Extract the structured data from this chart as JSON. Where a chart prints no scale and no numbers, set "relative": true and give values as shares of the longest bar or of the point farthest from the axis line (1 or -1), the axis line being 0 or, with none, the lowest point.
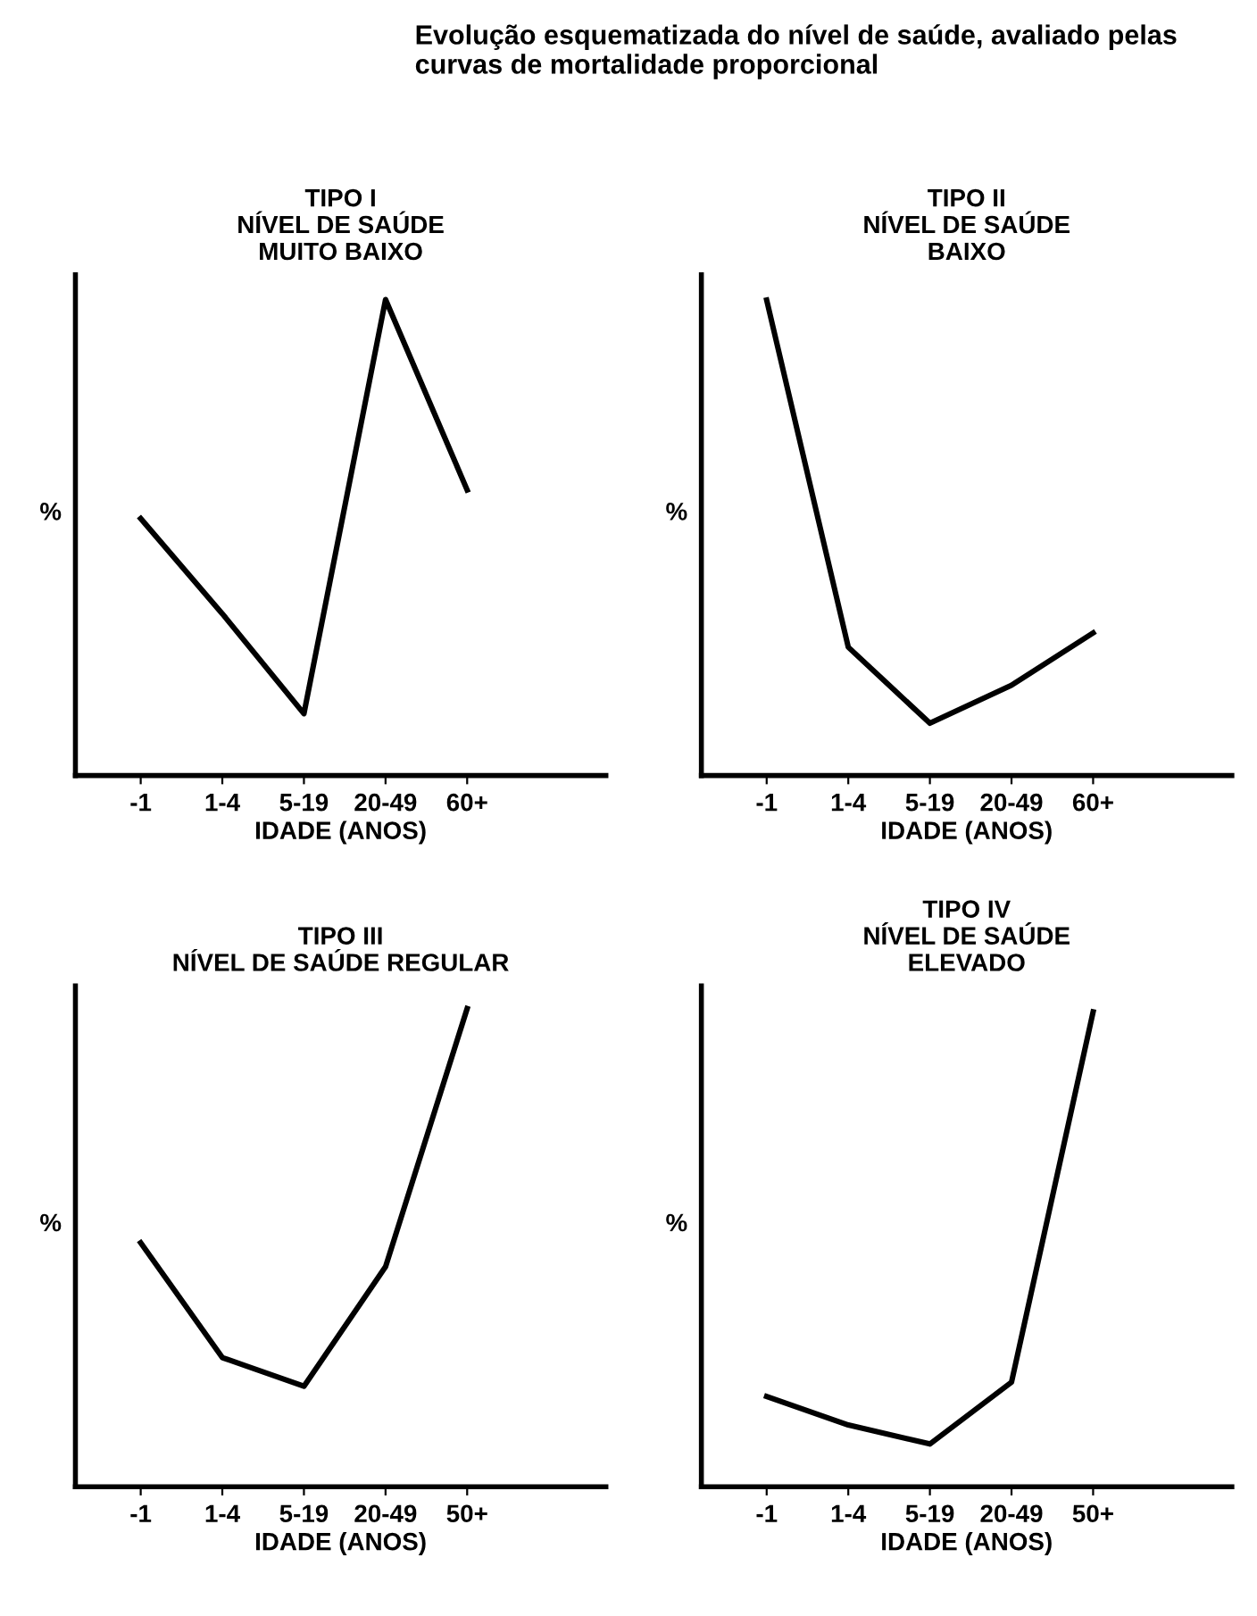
{
  "chart_data": [
    {
      "type": "line",
      "title": "TIPO I\nNÍVEL DE SAÚDE\nMUITO BAIXO",
      "annotations": [
        "Evolução esquematizada do nível de saúde, avaliado pelas curvas de mortalidade proporcional"
      ],
      "xlabel": "IDADE (ANOS)",
      "ylabel": "%",
      "categories": [
        "-1",
        "1-4",
        "5-19",
        "20-49",
        "60+"
      ],
      "series": [
        {
          "color": "#000000",
          "values": [
            0.54,
            0.34,
            0.13,
            1,
            0.6
          ]
        }
      ],
      "relative": true
    },
    {
      "type": "line",
      "title": "TIPO II\nNÍVEL DE SAÚDE\nBAIXO",
      "xlabel": "IDADE (ANOS)",
      "ylabel": "%",
      "categories": [
        "-1",
        "1-4",
        "5-19",
        "20-49",
        "60+"
      ],
      "series": [
        {
          "color": "#000000",
          "values": [
            1,
            0.27,
            0.11,
            0.19,
            0.3
          ]
        }
      ],
      "relative": true
    },
    {
      "type": "line",
      "title": "TIPO III\nNÍVEL DE SAÚDE REGULAR",
      "xlabel": "IDADE (ANOS)",
      "ylabel": "%",
      "categories": [
        "-1",
        "1-4",
        "5-19",
        "20-49",
        "50+"
      ],
      "series": [
        {
          "color": "#000000",
          "values": [
            0.51,
            0.27,
            0.21,
            0.46,
            1
          ]
        }
      ],
      "relative": true
    },
    {
      "type": "line",
      "title": "TIPO IV\nNÍVEL DE SAÚDE\nELEVADO",
      "xlabel": "IDADE (ANOS)",
      "ylabel": "%",
      "categories": [
        "-1",
        "1-4",
        "5-19",
        "20-49",
        "50+"
      ],
      "series": [
        {
          "color": "#000000",
          "values": [
            0.19,
            0.13,
            0.09,
            0.22,
            1
          ]
        }
      ],
      "relative": true
    }
  ]
}
